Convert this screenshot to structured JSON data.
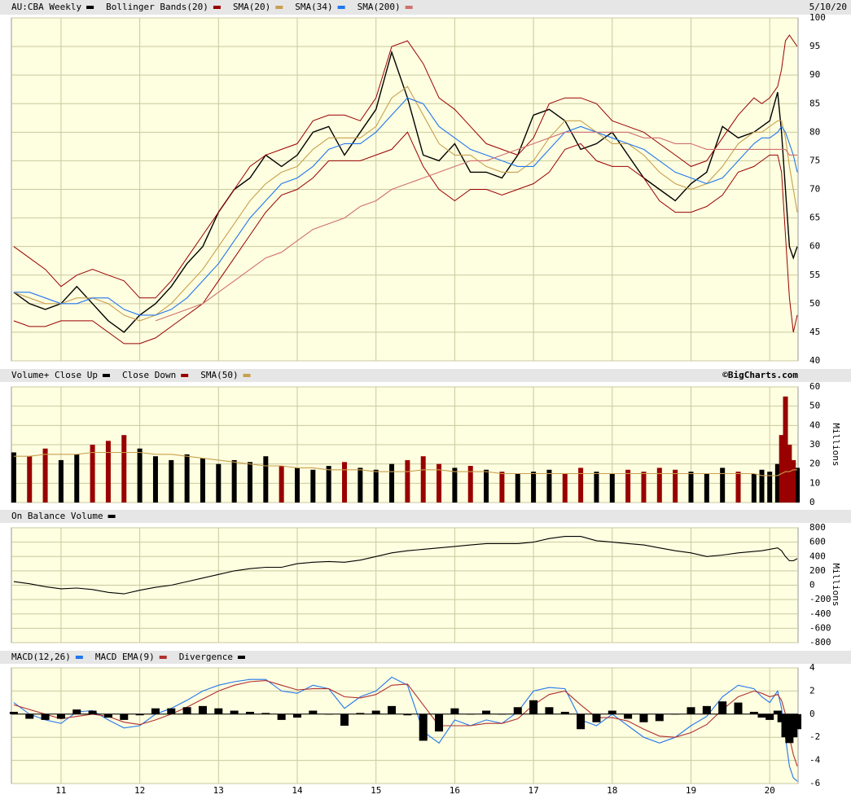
{
  "chart_data": [
    {
      "type": "line",
      "date_label": "5/10/20",
      "x": [
        10.4,
        10.6,
        10.8,
        11.0,
        11.2,
        11.4,
        11.6,
        11.8,
        12.0,
        12.2,
        12.4,
        12.6,
        12.8,
        13.0,
        13.2,
        13.4,
        13.6,
        13.8,
        14.0,
        14.2,
        14.4,
        14.6,
        14.8,
        15.0,
        15.2,
        15.4,
        15.6,
        15.8,
        16.0,
        16.2,
        16.4,
        16.6,
        16.8,
        17.0,
        17.2,
        17.4,
        17.6,
        17.8,
        18.0,
        18.2,
        18.4,
        18.6,
        18.8,
        19.0,
        19.2,
        19.4,
        19.6,
        19.8,
        19.9,
        20.0,
        20.1,
        20.15,
        20.2,
        20.25,
        20.3,
        20.35
      ],
      "xlim": [
        10.37,
        20.36
      ],
      "ylim": [
        40,
        100
      ],
      "yticks": [
        40,
        45,
        50,
        55,
        60,
        65,
        70,
        75,
        80,
        85,
        90,
        95,
        100
      ],
      "grid": true,
      "series": [
        {
          "name": "AU:CBA Weekly",
          "color": "#000000",
          "values": [
            52,
            50,
            49,
            50,
            53,
            50,
            47,
            45,
            48,
            50,
            53,
            57,
            60,
            66,
            70,
            72,
            76,
            74,
            76,
            80,
            81,
            76,
            80,
            84,
            94,
            86,
            76,
            75,
            78,
            73,
            73,
            72,
            76,
            83,
            84,
            82,
            77,
            78,
            80,
            76,
            72,
            70,
            68,
            71,
            73,
            81,
            79,
            80,
            81,
            82,
            87,
            80,
            70,
            60,
            58,
            60
          ]
        },
        {
          "name": "Bollinger Bands(20)",
          "color": "#990000",
          "upper": [
            60,
            58,
            56,
            53,
            55,
            56,
            55,
            54,
            51,
            51,
            54,
            58,
            62,
            66,
            70,
            74,
            76,
            77,
            78,
            82,
            83,
            83,
            82,
            86,
            95,
            96,
            92,
            86,
            84,
            81,
            78,
            77,
            76,
            79,
            85,
            86,
            86,
            85,
            82,
            81,
            80,
            78,
            76,
            74,
            75,
            79,
            83,
            86,
            85,
            86,
            88,
            91,
            96,
            97,
            96,
            95
          ],
          "lower": [
            47,
            46,
            46,
            47,
            47,
            47,
            45,
            43,
            43,
            44,
            46,
            48,
            50,
            54,
            58,
            62,
            66,
            69,
            70,
            72,
            75,
            75,
            75,
            76,
            77,
            80,
            74,
            70,
            68,
            70,
            70,
            69,
            70,
            71,
            73,
            77,
            78,
            75,
            74,
            74,
            72,
            68,
            66,
            66,
            67,
            69,
            73,
            74,
            75,
            76,
            76,
            73,
            62,
            51,
            45,
            48
          ]
        },
        {
          "name": "SMA(20)",
          "color": "#c8a050",
          "values": [
            52,
            51,
            50,
            50,
            51,
            51,
            50,
            48,
            47,
            48,
            50,
            53,
            56,
            60,
            64,
            68,
            71,
            73,
            74,
            77,
            79,
            79,
            79,
            81,
            86,
            88,
            83,
            78,
            76,
            76,
            74,
            73,
            73,
            75,
            79,
            82,
            82,
            80,
            78,
            78,
            76,
            73,
            71,
            70,
            71,
            74,
            78,
            80,
            80,
            81,
            82,
            82,
            79,
            74,
            70,
            66
          ]
        },
        {
          "name": "SMA(34)",
          "color": "#2277ee",
          "values": [
            52,
            52,
            51,
            50,
            50,
            51,
            51,
            49,
            48,
            48,
            49,
            51,
            54,
            57,
            61,
            65,
            68,
            71,
            72,
            74,
            77,
            78,
            78,
            80,
            83,
            86,
            85,
            81,
            79,
            77,
            76,
            75,
            74,
            74,
            77,
            80,
            81,
            80,
            79,
            78,
            77,
            75,
            73,
            72,
            71,
            72,
            75,
            78,
            79,
            79,
            80,
            81,
            80,
            78,
            76,
            73
          ]
        },
        {
          "name": "SMA(200)",
          "color": "#d07070",
          "values": [
            null,
            null,
            null,
            null,
            null,
            null,
            null,
            null,
            null,
            47,
            48,
            49,
            50,
            52,
            54,
            56,
            58,
            59,
            61,
            63,
            64,
            65,
            67,
            68,
            70,
            71,
            72,
            73,
            74,
            75,
            75,
            76,
            77,
            78,
            79,
            80,
            80,
            80,
            80,
            80,
            79,
            79,
            78,
            78,
            77,
            77,
            77,
            77,
            77,
            77,
            77,
            77,
            77,
            76,
            76,
            76
          ]
        }
      ]
    },
    {
      "type": "bar",
      "credit": "©BigCharts.com",
      "ylabel": "Millions",
      "x": [
        10.4,
        10.6,
        10.8,
        11.0,
        11.2,
        11.4,
        11.6,
        11.8,
        12.0,
        12.2,
        12.4,
        12.6,
        12.8,
        13.0,
        13.2,
        13.4,
        13.6,
        13.8,
        14.0,
        14.2,
        14.4,
        14.6,
        14.8,
        15.0,
        15.2,
        15.4,
        15.6,
        15.8,
        16.0,
        16.2,
        16.4,
        16.6,
        16.8,
        17.0,
        17.2,
        17.4,
        17.6,
        17.8,
        18.0,
        18.2,
        18.4,
        18.6,
        18.8,
        19.0,
        19.2,
        19.4,
        19.6,
        19.8,
        19.9,
        20.0,
        20.1,
        20.15,
        20.2,
        20.25,
        20.3,
        20.35
      ],
      "xlim": [
        10.37,
        20.36
      ],
      "ylim": [
        0,
        60
      ],
      "yticks": [
        0,
        10,
        20,
        30,
        40,
        50,
        60
      ],
      "grid": true,
      "series": [
        {
          "name": "Volume+ Close Up",
          "color": "#000000",
          "values": [
            26,
            null,
            null,
            22,
            25,
            null,
            null,
            null,
            28,
            24,
            22,
            25,
            23,
            20,
            22,
            21,
            24,
            null,
            18,
            17,
            19,
            null,
            18,
            17,
            20,
            null,
            null,
            null,
            18,
            null,
            17,
            null,
            15,
            16,
            17,
            null,
            null,
            16,
            15,
            null,
            null,
            null,
            null,
            16,
            15,
            18,
            null,
            15,
            17,
            16,
            20,
            null,
            null,
            null,
            null,
            18
          ]
        },
        {
          "name": "Close Down",
          "color": "#990000",
          "values": [
            null,
            24,
            28,
            null,
            null,
            30,
            32,
            35,
            null,
            null,
            null,
            null,
            null,
            null,
            null,
            null,
            null,
            19,
            null,
            null,
            null,
            21,
            null,
            null,
            null,
            22,
            24,
            20,
            null,
            19,
            null,
            16,
            null,
            null,
            null,
            15,
            18,
            null,
            null,
            17,
            16,
            18,
            17,
            null,
            null,
            null,
            16,
            null,
            null,
            null,
            null,
            35,
            55,
            30,
            22,
            null
          ]
        },
        {
          "name": "SMA(50)",
          "color": "#c8a050",
          "kind": "line",
          "values": [
            24,
            24,
            25,
            25,
            25,
            26,
            26,
            26,
            26,
            25,
            25,
            24,
            23,
            22,
            21,
            20,
            19,
            19,
            18,
            18,
            17,
            17,
            17,
            16,
            16,
            16,
            17,
            17,
            16,
            16,
            16,
            15,
            15,
            15,
            15,
            15,
            15,
            15,
            15,
            15,
            15,
            15,
            15,
            15,
            15,
            15,
            15,
            15,
            14,
            14,
            14,
            15,
            16,
            16,
            17,
            17
          ]
        }
      ]
    },
    {
      "type": "line",
      "ylabel": "Millions",
      "x": [
        10.4,
        10.6,
        10.8,
        11.0,
        11.2,
        11.4,
        11.6,
        11.8,
        12.0,
        12.2,
        12.4,
        12.6,
        12.8,
        13.0,
        13.2,
        13.4,
        13.6,
        13.8,
        14.0,
        14.2,
        14.4,
        14.6,
        14.8,
        15.0,
        15.2,
        15.4,
        15.6,
        15.8,
        16.0,
        16.2,
        16.4,
        16.6,
        16.8,
        17.0,
        17.2,
        17.4,
        17.6,
        17.8,
        18.0,
        18.2,
        18.4,
        18.6,
        18.8,
        19.0,
        19.2,
        19.4,
        19.6,
        19.8,
        19.9,
        20.0,
        20.1,
        20.15,
        20.2,
        20.25,
        20.3,
        20.35
      ],
      "xlim": [
        10.37,
        20.36
      ],
      "ylim": [
        -800,
        800
      ],
      "yticks": [
        -800,
        -600,
        -400,
        -200,
        0,
        200,
        400,
        600,
        800
      ],
      "grid": true,
      "series": [
        {
          "name": "On Balance Volume",
          "color": "#000000",
          "values": [
            50,
            20,
            -20,
            -50,
            -40,
            -60,
            -100,
            -120,
            -70,
            -30,
            0,
            50,
            100,
            150,
            200,
            230,
            250,
            250,
            300,
            320,
            330,
            320,
            350,
            400,
            450,
            480,
            500,
            520,
            540,
            560,
            580,
            580,
            580,
            600,
            650,
            680,
            680,
            620,
            600,
            580,
            560,
            520,
            480,
            450,
            400,
            420,
            450,
            470,
            480,
            500,
            520,
            480,
            400,
            340,
            340,
            370
          ]
        }
      ]
    },
    {
      "type": "line",
      "x": [
        10.4,
        10.6,
        10.8,
        11.0,
        11.2,
        11.4,
        11.6,
        11.8,
        12.0,
        12.2,
        12.4,
        12.6,
        12.8,
        13.0,
        13.2,
        13.4,
        13.6,
        13.8,
        14.0,
        14.2,
        14.4,
        14.6,
        14.8,
        15.0,
        15.2,
        15.4,
        15.6,
        15.8,
        16.0,
        16.2,
        16.4,
        16.6,
        16.8,
        17.0,
        17.2,
        17.4,
        17.6,
        17.8,
        18.0,
        18.2,
        18.4,
        18.6,
        18.8,
        19.0,
        19.2,
        19.4,
        19.6,
        19.8,
        19.9,
        20.0,
        20.1,
        20.15,
        20.2,
        20.25,
        20.3,
        20.35
      ],
      "xlim": [
        10.37,
        20.36
      ],
      "xticks": [
        11,
        12,
        13,
        14,
        15,
        16,
        17,
        18,
        19,
        20
      ],
      "ylim": [
        -6,
        4
      ],
      "yticks": [
        -6,
        -4,
        -2,
        0,
        2,
        4
      ],
      "grid": true,
      "series": [
        {
          "name": "MACD(12,26)",
          "color": "#2277ee",
          "values": [
            1,
            0,
            -0.5,
            -0.8,
            0.2,
            0.3,
            -0.5,
            -1.2,
            -1.0,
            0,
            0.5,
            1.2,
            2.0,
            2.5,
            2.8,
            3.0,
            3.0,
            2.0,
            1.8,
            2.5,
            2.2,
            0.5,
            1.5,
            2.0,
            3.2,
            2.5,
            -1.5,
            -2.5,
            -0.5,
            -1.0,
            -0.5,
            -0.8,
            0.2,
            2.0,
            2.3,
            2.2,
            -0.5,
            -1.0,
            0,
            -1.0,
            -2.0,
            -2.5,
            -2.0,
            -1.0,
            -0.2,
            1.5,
            2.5,
            2.2,
            1.5,
            1.0,
            2.0,
            0.5,
            -2.0,
            -4.5,
            -5.5,
            -5.8
          ]
        },
        {
          "name": "MACD EMA(9)",
          "color": "#b03030",
          "values": [
            0.8,
            0.4,
            0,
            -0.4,
            -0.2,
            0,
            -0.2,
            -0.7,
            -0.9,
            -0.5,
            0,
            0.6,
            1.3,
            2.0,
            2.5,
            2.8,
            2.9,
            2.5,
            2.1,
            2.2,
            2.2,
            1.5,
            1.4,
            1.7,
            2.5,
            2.6,
            0.8,
            -1.0,
            -1.0,
            -1.0,
            -0.8,
            -0.8,
            -0.4,
            0.8,
            1.7,
            2.0,
            0.8,
            -0.3,
            -0.3,
            -0.6,
            -1.3,
            -1.9,
            -2.0,
            -1.6,
            -0.9,
            0.4,
            1.5,
            2.0,
            1.8,
            1.5,
            1.7,
            1.2,
            0,
            -2.0,
            -3.5,
            -4.5
          ]
        },
        {
          "name": "Divergence",
          "color": "#000000",
          "kind": "bar",
          "values": [
            0.2,
            -0.4,
            -0.5,
            -0.4,
            0.4,
            0.3,
            -0.3,
            -0.5,
            -0.1,
            0.5,
            0.5,
            0.6,
            0.7,
            0.5,
            0.3,
            0.2,
            0.1,
            -0.5,
            -0.3,
            0.3,
            0,
            -1,
            0.1,
            0.3,
            0.7,
            -0.1,
            -2.3,
            -1.5,
            0.5,
            0,
            0.3,
            0,
            0.6,
            1.2,
            0.6,
            0.2,
            -1.3,
            -0.7,
            0.3,
            -0.4,
            -0.7,
            -0.6,
            0,
            0.6,
            0.7,
            1.1,
            1.0,
            0.2,
            -0.3,
            -0.5,
            0.3,
            -0.7,
            -2.0,
            -2.5,
            -2.0,
            -1.3
          ]
        }
      ]
    }
  ]
}
